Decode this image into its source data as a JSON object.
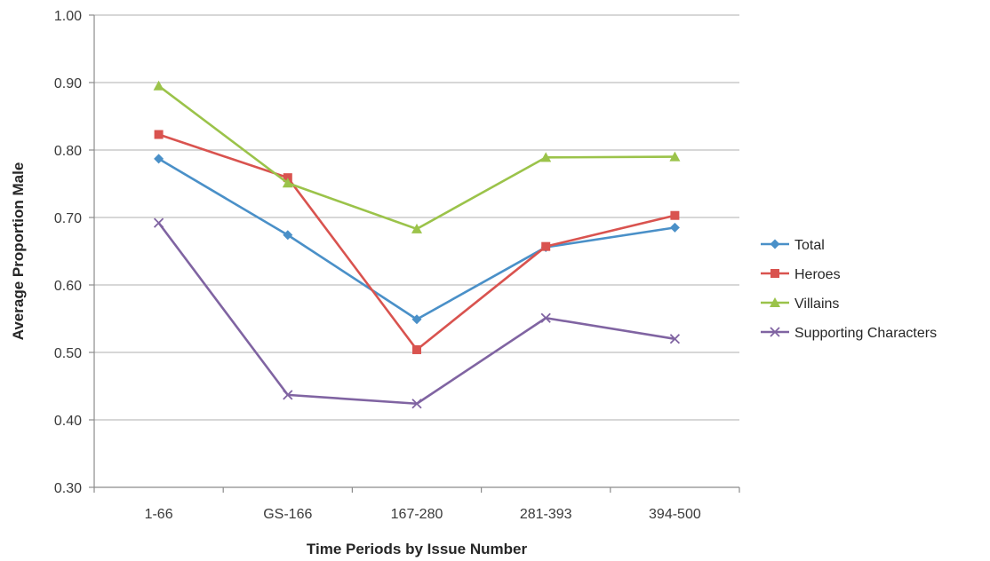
{
  "chart_data": {
    "type": "line",
    "title": "",
    "xlabel": "Time Periods by Issue Number",
    "ylabel": "Average Proportion Male",
    "categories": [
      "1-66",
      "GS-166",
      "167-280",
      "281-393",
      "394-500"
    ],
    "ylim": [
      0.3,
      1.0
    ],
    "yticks": [
      "0.30",
      "0.40",
      "0.50",
      "0.60",
      "0.70",
      "0.80",
      "0.90",
      "1.00"
    ],
    "ytick_values": [
      0.3,
      0.4,
      0.5,
      0.6,
      0.7,
      0.8,
      0.9,
      1.0
    ],
    "grid": "horizontal",
    "legend_position": "right",
    "series": [
      {
        "name": "Total",
        "color": "#4a90c8",
        "marker": "diamond",
        "values": [
          0.787,
          0.674,
          0.549,
          0.656,
          0.685
        ]
      },
      {
        "name": "Heroes",
        "color": "#d9534f",
        "marker": "square",
        "values": [
          0.823,
          0.759,
          0.504,
          0.657,
          0.703
        ]
      },
      {
        "name": "Villains",
        "color": "#9bc34a",
        "marker": "triangle",
        "values": [
          0.895,
          0.751,
          0.683,
          0.789,
          0.79
        ]
      },
      {
        "name": "Supporting Characters",
        "color": "#8064a2",
        "marker": "x",
        "values": [
          0.692,
          0.437,
          0.424,
          0.551,
          0.52
        ]
      }
    ]
  }
}
